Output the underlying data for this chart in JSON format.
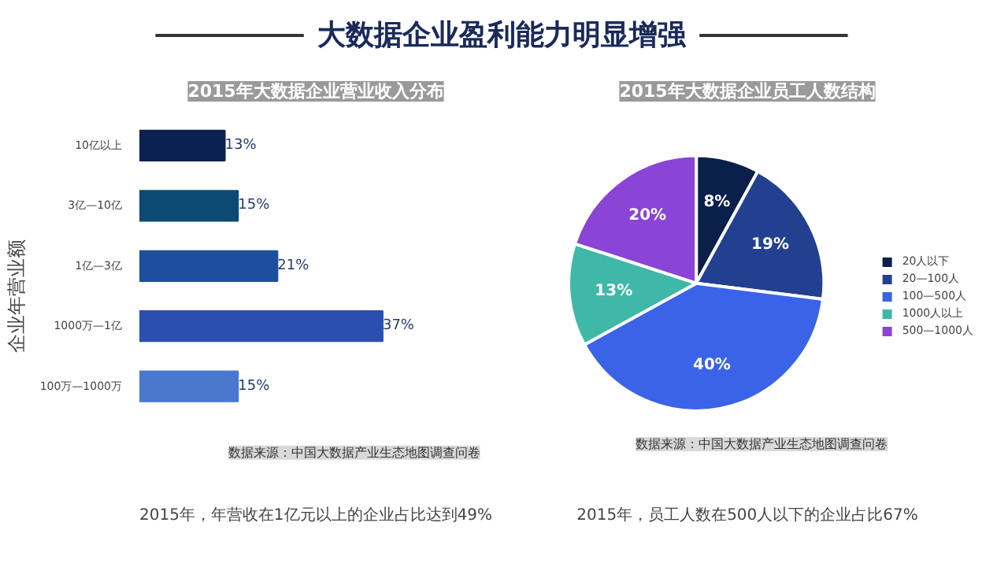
{
  "chart_data": [
    {
      "type": "other",
      "title": "大数据企业盈利能力明显增强"
    },
    {
      "type": "bar",
      "orientation": "horizontal",
      "title": "2015年大数据企业营业收入分布",
      "ylabel": "企业年营业额",
      "categories": [
        "10亿以上",
        "3亿—10亿",
        "1亿—3亿",
        "1000万—1亿",
        "100万—1000万"
      ],
      "values": [
        13,
        15,
        21,
        37,
        15
      ],
      "value_labels": [
        "13%",
        "15%",
        "21%",
        "37%",
        "15%"
      ],
      "colors": [
        "#0b2150",
        "#0d4a73",
        "#1e4f9c",
        "#2a4fb0",
        "#4a78cf"
      ],
      "annotations": [
        "数据来源：中国大数据产业生态地图调查问卷",
        "2015年，年营收在1亿元以上的企业占比达到49%"
      ]
    },
    {
      "type": "pie",
      "title": "2015年大数据企业员工人数结构",
      "categories": [
        "20人以下",
        "20—100人",
        "100—500人",
        "1000人以上",
        "500—1000人"
      ],
      "values": [
        8,
        19,
        40,
        13,
        20
      ],
      "value_labels": [
        "8%",
        "19%",
        "40%",
        "13%",
        "20%"
      ],
      "colors": [
        "#0a1f4a",
        "#22408f",
        "#3a63e8",
        "#3fb8a8",
        "#8a44d6"
      ],
      "legend": "right",
      "annotations": [
        "数据来源：中国大数据产业生态地图调查问卷",
        "2015年，员工人数在500人以下的企业占比67%"
      ]
    }
  ]
}
